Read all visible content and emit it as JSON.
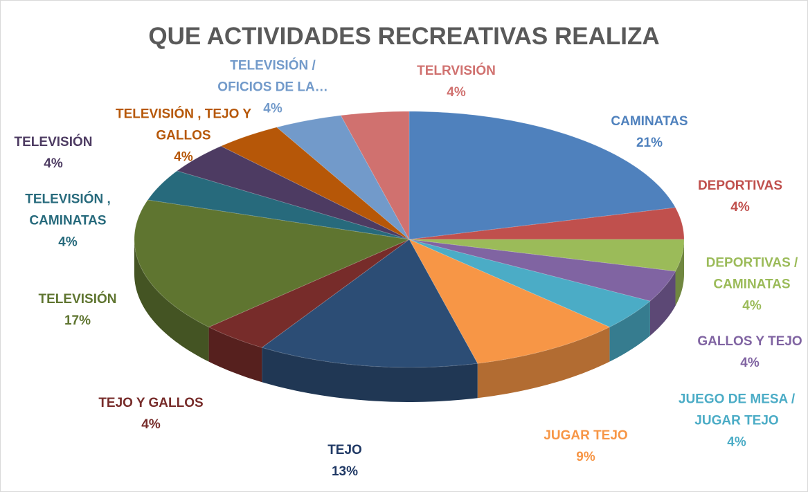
{
  "chart_data": {
    "type": "pie",
    "title": "QUE ACTIVIDADES RECREATIVAS REALIZA",
    "categories": [
      "CAMINATAS",
      "DEPORTIVAS",
      "DEPORTIVAS / CAMINATAS",
      "GALLOS Y TEJO",
      "JUEGO DE MESA / JUGAR TEJO",
      "JUGAR TEJO",
      "TEJO",
      "TEJO Y GALLOS",
      "TELEVISIÓN",
      "TELEVISIÓN , CAMINATAS",
      "TELEVISIÓN",
      "TELEVISIÓN , TEJO Y GALLOS",
      "TELEVISIÓN / OFICIOS DE LA…",
      "TELRVISIÓN"
    ],
    "values": [
      21,
      4,
      4,
      4,
      4,
      9,
      13,
      4,
      17,
      4,
      4,
      4,
      4,
      4
    ],
    "value_labels": [
      "21%",
      "4%",
      "4%",
      "4%",
      "4%",
      "9%",
      "13%",
      "4%",
      "17%",
      "4%",
      "4%",
      "4%",
      "4%",
      "4%"
    ],
    "colors": [
      "#4f81bd",
      "#c0504d",
      "#9bbb59",
      "#8064a2",
      "#4bacc6",
      "#f79646",
      "#2c4d75",
      "#772c2a",
      "#5f7530",
      "#276a7c",
      "#4d3b62",
      "#b65708",
      "#729aca",
      "#d0716f"
    ]
  }
}
